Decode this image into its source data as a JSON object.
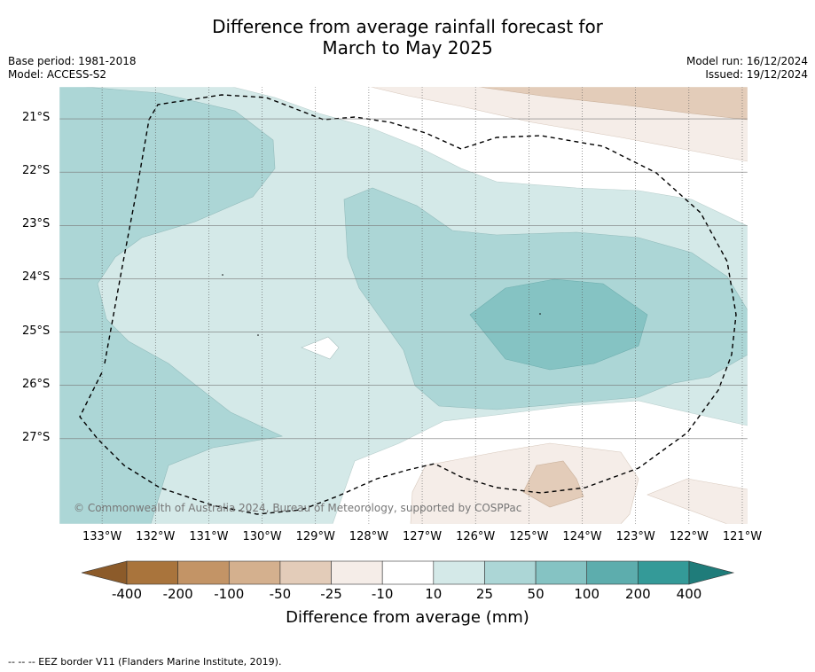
{
  "title": {
    "line1": "Difference from average rainfall forecast for",
    "line2": "March to May 2025"
  },
  "meta_left": {
    "base_period": "Base period: 1981-2018",
    "model": "Model: ACCESS-S2"
  },
  "meta_right": {
    "model_run": "Model run: 16/12/2024",
    "issued": "Issued: 19/12/2024"
  },
  "map": {
    "lon_range": [
      -133.8,
      -120.9
    ],
    "lat_range": [
      -28.6,
      -20.4
    ],
    "lat_ticks": [
      {
        "value": -21,
        "label": "21°S"
      },
      {
        "value": -22,
        "label": "22°S"
      },
      {
        "value": -23,
        "label": "23°S"
      },
      {
        "value": -24,
        "label": "24°S"
      },
      {
        "value": -25,
        "label": "25°S"
      },
      {
        "value": -26,
        "label": "26°S"
      },
      {
        "value": -27,
        "label": "27°S"
      }
    ],
    "lon_ticks": [
      {
        "value": -133,
        "label": "133°W"
      },
      {
        "value": -132,
        "label": "132°W"
      },
      {
        "value": -131,
        "label": "131°W"
      },
      {
        "value": -130,
        "label": "130°W"
      },
      {
        "value": -129,
        "label": "129°W"
      },
      {
        "value": -128,
        "label": "128°W"
      },
      {
        "value": -127,
        "label": "127°W"
      },
      {
        "value": -126,
        "label": "126°W"
      },
      {
        "value": -125,
        "label": "125°W"
      },
      {
        "value": -124,
        "label": "124°W"
      },
      {
        "value": -123,
        "label": "123°W"
      },
      {
        "value": -122,
        "label": "122°W"
      },
      {
        "value": -121,
        "label": "121°W"
      }
    ],
    "copyright": "© Commonwealth of Australia 2024, Bureau of Meteorology, supported by COSPPac",
    "grid": true
  },
  "colorbar": {
    "ticks": [
      "-400",
      "-200",
      "-100",
      "-50",
      "-25",
      "-10",
      "10",
      "25",
      "50",
      "100",
      "200",
      "400"
    ],
    "colors": [
      "#a9743c",
      "#c39466",
      "#d4b08e",
      "#e3ccb9",
      "#f5ede8",
      "#ffffff",
      "#d4e9e8",
      "#acd6d6",
      "#85c3c3",
      "#5dadad",
      "#349a98"
    ],
    "extend_low": "#8c5b2a",
    "extend_high": "#1f7c7a",
    "label": "Difference from average (mm)"
  },
  "footer": "--  --  -- EEZ border V11 (Flanders Marine Institute, 2019)."
}
